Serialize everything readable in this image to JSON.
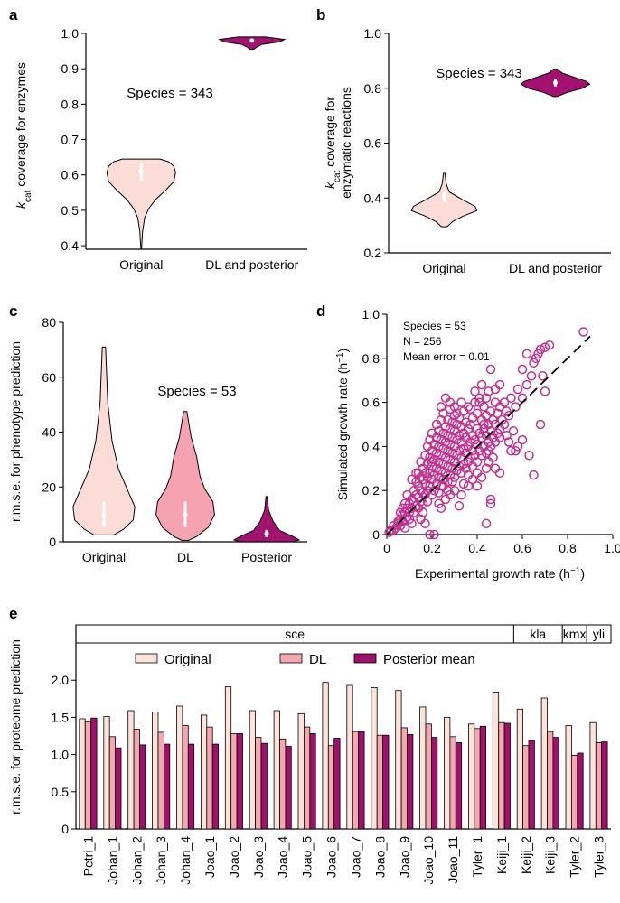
{
  "chart_data": [
    {
      "panel": "a",
      "type": "violin",
      "categories": [
        "Original",
        "DL and posterior"
      ],
      "ylabel_main": "k",
      "ylabel_sub": "cat",
      "ylabel_rest": " coverage for enzymes",
      "ylim": [
        0.39,
        1.0
      ],
      "yticks": [
        "0.4",
        "0.5",
        "0.6",
        "0.7",
        "0.8",
        "0.9",
        "1.0"
      ],
      "annotation": "Species = 343",
      "series": [
        {
          "category": "Original",
          "min": 0.39,
          "max": 0.645,
          "median": 0.61,
          "color": "#fcdcd6"
        },
        {
          "category": "DL and posterior",
          "min": 0.955,
          "max": 0.99,
          "median": 0.98,
          "color": "#a3126f"
        }
      ]
    },
    {
      "panel": "b",
      "type": "violin",
      "categories": [
        "Original",
        "DL and posterior"
      ],
      "ylabel_main": "k",
      "ylabel_sub": "cat",
      "ylabel_rest": " coverage for",
      "ylabel_line2": "enzymatic reactions",
      "ylim": [
        0.2,
        1.0
      ],
      "yticks": [
        "0.2",
        "0.4",
        "0.6",
        "0.8",
        "1.0"
      ],
      "annotation": "Species = 343",
      "series": [
        {
          "category": "Original",
          "min": 0.295,
          "max": 0.49,
          "median": 0.405,
          "color": "#fcdcd6"
        },
        {
          "category": "DL and posterior",
          "min": 0.77,
          "max": 0.87,
          "median": 0.82,
          "color": "#a3126f"
        }
      ]
    },
    {
      "panel": "c",
      "type": "violin",
      "categories": [
        "Original",
        "DL",
        "Posterior"
      ],
      "ylabel": "r.m.s.e. for phenotype prediction",
      "ylim": [
        0,
        80
      ],
      "yticks": [
        "0",
        "20",
        "40",
        "60",
        "80"
      ],
      "annotation": "Species = 53",
      "series": [
        {
          "category": "Original",
          "min": 2.5,
          "max": 71,
          "median": 10,
          "color": "#fcdcd6"
        },
        {
          "category": "DL",
          "min": 0.5,
          "max": 47.5,
          "median": 10,
          "color": "#f5a3b1"
        },
        {
          "category": "Posterior",
          "min": 0,
          "max": 16.5,
          "median": 3,
          "color": "#a3126f"
        }
      ]
    },
    {
      "panel": "d",
      "type": "scatter",
      "xlabel": "Experimental growth rate (h",
      "xlabel_sup": "−1",
      "ylabel": "Simulated growth rate (h",
      "ylabel_sup": "−1",
      "xlim": [
        0,
        1.0
      ],
      "ylim": [
        0,
        1.0
      ],
      "xticks": [
        "0",
        "0.2",
        "0.4",
        "0.6",
        "0.8",
        "1.0"
      ],
      "yticks": [
        "0",
        "0.2",
        "0.4",
        "0.6",
        "0.8",
        "1.0"
      ],
      "annotations": [
        "Species = 53",
        "N = 256",
        "Mean error = 0.01"
      ],
      "point_color": "#c3308f",
      "reference_line": {
        "from": [
          0,
          0
        ],
        "to": [
          0.9,
          0.9
        ],
        "style": "dashed"
      },
      "points": [
        [
          0.01,
          0.01
        ],
        [
          0.02,
          0.02
        ],
        [
          0.03,
          0.02
        ],
        [
          0.03,
          0.04
        ],
        [
          0.04,
          0.03
        ],
        [
          0.05,
          0.05
        ],
        [
          0.05,
          0.06
        ],
        [
          0.06,
          0.04
        ],
        [
          0.06,
          0.07
        ],
        [
          0.07,
          0.06
        ],
        [
          0.07,
          0.09
        ],
        [
          0.08,
          0.07
        ],
        [
          0.08,
          0.1
        ],
        [
          0.09,
          0.08
        ],
        [
          0.09,
          0.12
        ],
        [
          0.1,
          0.1
        ],
        [
          0.1,
          0.14
        ],
        [
          0.1,
          0.07
        ],
        [
          0.11,
          0.12
        ],
        [
          0.11,
          0.16
        ],
        [
          0.12,
          0.1
        ],
        [
          0.12,
          0.15
        ],
        [
          0.12,
          0.2
        ],
        [
          0.13,
          0.13
        ],
        [
          0.13,
          0.18
        ],
        [
          0.13,
          0.24
        ],
        [
          0.14,
          0.12
        ],
        [
          0.14,
          0.17
        ],
        [
          0.14,
          0.22
        ],
        [
          0.14,
          0.28
        ],
        [
          0.15,
          0.15
        ],
        [
          0.15,
          0.2
        ],
        [
          0.15,
          0.26
        ],
        [
          0.15,
          0.33
        ],
        [
          0.16,
          0.14
        ],
        [
          0.16,
          0.19
        ],
        [
          0.16,
          0.25
        ],
        [
          0.16,
          0.3
        ],
        [
          0.16,
          0.1
        ],
        [
          0.17,
          0.18
        ],
        [
          0.17,
          0.23
        ],
        [
          0.17,
          0.28
        ],
        [
          0.17,
          0.36
        ],
        [
          0.18,
          0.2
        ],
        [
          0.18,
          0.26
        ],
        [
          0.18,
          0.32
        ],
        [
          0.18,
          0.4
        ],
        [
          0.18,
          0.15
        ],
        [
          0.19,
          0.22
        ],
        [
          0.19,
          0.28
        ],
        [
          0.19,
          0.35
        ],
        [
          0.19,
          0.43
        ],
        [
          0.2,
          0.18
        ],
        [
          0.2,
          0.25
        ],
        [
          0.2,
          0.31
        ],
        [
          0.2,
          0.38
        ],
        [
          0.2,
          0.46
        ],
        [
          0.21,
          0.2
        ],
        [
          0.21,
          0.27
        ],
        [
          0.21,
          0.34
        ],
        [
          0.21,
          0.41
        ],
        [
          0.22,
          0.23
        ],
        [
          0.22,
          0.3
        ],
        [
          0.22,
          0.37
        ],
        [
          0.22,
          0.44
        ],
        [
          0.22,
          0.5
        ],
        [
          0.23,
          0.19
        ],
        [
          0.23,
          0.26
        ],
        [
          0.23,
          0.33
        ],
        [
          0.23,
          0.4
        ],
        [
          0.23,
          0.47
        ],
        [
          0.24,
          0.22
        ],
        [
          0.24,
          0.29
        ],
        [
          0.24,
          0.36
        ],
        [
          0.24,
          0.43
        ],
        [
          0.24,
          0.52
        ],
        [
          0.25,
          0.25
        ],
        [
          0.25,
          0.32
        ],
        [
          0.25,
          0.39
        ],
        [
          0.25,
          0.46
        ],
        [
          0.25,
          0.55
        ],
        [
          0.26,
          0.28
        ],
        [
          0.26,
          0.35
        ],
        [
          0.26,
          0.42
        ],
        [
          0.26,
          0.49
        ],
        [
          0.27,
          0.24
        ],
        [
          0.27,
          0.31
        ],
        [
          0.27,
          0.38
        ],
        [
          0.27,
          0.45
        ],
        [
          0.27,
          0.52
        ],
        [
          0.28,
          0.27
        ],
        [
          0.28,
          0.34
        ],
        [
          0.28,
          0.41
        ],
        [
          0.28,
          0.48
        ],
        [
          0.28,
          0.57
        ],
        [
          0.29,
          0.3
        ],
        [
          0.29,
          0.37
        ],
        [
          0.29,
          0.44
        ],
        [
          0.29,
          0.51
        ],
        [
          0.3,
          0.26
        ],
        [
          0.3,
          0.33
        ],
        [
          0.3,
          0.4
        ],
        [
          0.3,
          0.47
        ],
        [
          0.3,
          0.54
        ],
        [
          0.31,
          0.29
        ],
        [
          0.31,
          0.36
        ],
        [
          0.31,
          0.43
        ],
        [
          0.31,
          0.5
        ],
        [
          0.32,
          0.31
        ],
        [
          0.32,
          0.38
        ],
        [
          0.32,
          0.45
        ],
        [
          0.32,
          0.53
        ],
        [
          0.33,
          0.28
        ],
        [
          0.33,
          0.35
        ],
        [
          0.33,
          0.42
        ],
        [
          0.33,
          0.49
        ],
        [
          0.34,
          0.32
        ],
        [
          0.34,
          0.39
        ],
        [
          0.34,
          0.46
        ],
        [
          0.34,
          0.56
        ],
        [
          0.35,
          0.3
        ],
        [
          0.35,
          0.37
        ],
        [
          0.35,
          0.44
        ],
        [
          0.35,
          0.51
        ],
        [
          0.36,
          0.33
        ],
        [
          0.36,
          0.4
        ],
        [
          0.36,
          0.48
        ],
        [
          0.36,
          0.58
        ],
        [
          0.37,
          0.35
        ],
        [
          0.37,
          0.42
        ],
        [
          0.37,
          0.5
        ],
        [
          0.38,
          0.31
        ],
        [
          0.38,
          0.38
        ],
        [
          0.38,
          0.45
        ],
        [
          0.38,
          0.53
        ],
        [
          0.39,
          0.36
        ],
        [
          0.39,
          0.43
        ],
        [
          0.39,
          0.6
        ],
        [
          0.4,
          0.33
        ],
        [
          0.4,
          0.41
        ],
        [
          0.4,
          0.48
        ],
        [
          0.4,
          0.55
        ],
        [
          0.41,
          0.38
        ],
        [
          0.41,
          0.46
        ],
        [
          0.41,
          0.62
        ],
        [
          0.42,
          0.36
        ],
        [
          0.42,
          0.44
        ],
        [
          0.42,
          0.52
        ],
        [
          0.43,
          0.4
        ],
        [
          0.43,
          0.48
        ],
        [
          0.43,
          0.58
        ],
        [
          0.44,
          0.37
        ],
        [
          0.44,
          0.45
        ],
        [
          0.44,
          0.54
        ],
        [
          0.45,
          0.42
        ],
        [
          0.45,
          0.5
        ],
        [
          0.45,
          0.65
        ],
        [
          0.46,
          0.4
        ],
        [
          0.46,
          0.47
        ],
        [
          0.46,
          0.56
        ],
        [
          0.47,
          0.44
        ],
        [
          0.47,
          0.52
        ],
        [
          0.48,
          0.42
        ],
        [
          0.48,
          0.5
        ],
        [
          0.48,
          0.6
        ],
        [
          0.49,
          0.46
        ],
        [
          0.49,
          0.55
        ],
        [
          0.5,
          0.48
        ],
        [
          0.5,
          0.58
        ],
        [
          0.5,
          0.44
        ],
        [
          0.51,
          0.52
        ],
        [
          0.52,
          0.5
        ],
        [
          0.52,
          0.6
        ],
        [
          0.53,
          0.56
        ],
        [
          0.54,
          0.54
        ],
        [
          0.55,
          0.62
        ],
        [
          0.57,
          0.58
        ],
        [
          0.58,
          0.66
        ],
        [
          0.6,
          0.62
        ],
        [
          0.62,
          0.68
        ],
        [
          0.64,
          0.72
        ],
        [
          0.65,
          0.78
        ],
        [
          0.66,
          0.8
        ],
        [
          0.67,
          0.82
        ],
        [
          0.68,
          0.84
        ],
        [
          0.7,
          0.85
        ],
        [
          0.72,
          0.86
        ],
        [
          0.87,
          0.92
        ],
        [
          0.6,
          0.75
        ],
        [
          0.62,
          0.82
        ],
        [
          0.69,
          0.72
        ],
        [
          0.7,
          0.65
        ],
        [
          0.46,
          0.75
        ],
        [
          0.5,
          0.68
        ],
        [
          0.43,
          0.5
        ],
        [
          0.45,
          0.38
        ],
        [
          0.48,
          0.3
        ],
        [
          0.5,
          0.28
        ],
        [
          0.55,
          0.38
        ],
        [
          0.56,
          0.47
        ],
        [
          0.57,
          0.38
        ],
        [
          0.58,
          0.4
        ],
        [
          0.6,
          0.43
        ],
        [
          0.63,
          0.36
        ],
        [
          0.65,
          0.27
        ],
        [
          0.68,
          0.5
        ],
        [
          0.4,
          0.28
        ],
        [
          0.42,
          0.26
        ],
        [
          0.44,
          0.3
        ],
        [
          0.45,
          0.33
        ],
        [
          0.46,
          0.16
        ],
        [
          0.46,
          0.14
        ],
        [
          0.44,
          0.05
        ],
        [
          0.36,
          0.22
        ],
        [
          0.34,
          0.23
        ],
        [
          0.3,
          0.2
        ],
        [
          0.28,
          0.18
        ],
        [
          0.26,
          0.16
        ],
        [
          0.24,
          0.12
        ],
        [
          0.21,
          0.0
        ],
        [
          0.19,
          0.0
        ],
        [
          0.17,
          0.05
        ],
        [
          0.15,
          0.07
        ],
        [
          0.11,
          0.05
        ],
        [
          0.08,
          0.03
        ],
        [
          0.26,
          0.62
        ],
        [
          0.28,
          0.6
        ],
        [
          0.31,
          0.55
        ],
        [
          0.33,
          0.6
        ],
        [
          0.37,
          0.57
        ],
        [
          0.39,
          0.65
        ],
        [
          0.41,
          0.6
        ],
        [
          0.42,
          0.68
        ],
        [
          0.44,
          0.62
        ],
        [
          0.48,
          0.66
        ],
        [
          0.53,
          0.45
        ],
        [
          0.54,
          0.42
        ],
        [
          0.3,
          0.58
        ],
        [
          0.24,
          0.58
        ],
        [
          0.2,
          0.33
        ],
        [
          0.13,
          0.28
        ],
        [
          0.11,
          0.25
        ],
        [
          0.09,
          0.18
        ],
        [
          0.08,
          0.14
        ],
        [
          0.07,
          0.12
        ],
        [
          0.06,
          0.1
        ],
        [
          0.36,
          0.27
        ],
        [
          0.38,
          0.25
        ],
        [
          0.4,
          0.22
        ],
        [
          0.33,
          0.18
        ],
        [
          0.32,
          0.13
        ],
        [
          0.29,
          0.24
        ],
        [
          0.27,
          0.2
        ],
        [
          0.25,
          0.22
        ],
        [
          0.23,
          0.14
        ],
        [
          0.47,
          0.35
        ]
      ]
    },
    {
      "panel": "e",
      "type": "bar",
      "ylabel": "r.m.s.e. for proteome prediction",
      "ylim": [
        0,
        2.5
      ],
      "yticks": [
        "0",
        "0.5",
        "1.0",
        "1.5",
        "2.0"
      ],
      "categories": [
        "Petri_1",
        "Johan_1",
        "Johan_2",
        "Johan_3",
        "Johan_4",
        "Joao_1",
        "Joao_2",
        "Joao_3",
        "Joao_4",
        "Joao_5",
        "Joao_6",
        "Joao_7",
        "Joao_8",
        "Joao_9",
        "Joao_10",
        "Joao_11",
        "Tyler_1",
        "Keiji_1",
        "Keiji_2",
        "Keiji_3",
        "Tyler_2",
        "Tyler_3"
      ],
      "groups": [
        {
          "label": "sce",
          "start": 0,
          "end": 17
        },
        {
          "label": "kla",
          "start": 18,
          "end": 19
        },
        {
          "label": "kmx",
          "start": 20,
          "end": 20
        },
        {
          "label": "yli",
          "start": 21,
          "end": 21
        }
      ],
      "series": [
        {
          "name": "Original",
          "color": "#fce3da",
          "values": [
            1.48,
            1.51,
            1.59,
            1.57,
            1.65,
            1.53,
            1.91,
            1.59,
            1.59,
            1.55,
            1.97,
            1.93,
            1.9,
            1.86,
            1.64,
            1.5,
            1.41,
            1.84,
            1.61,
            1.76,
            1.39,
            1.43
          ]
        },
        {
          "name": "DL",
          "color": "#f2a8ae",
          "values": [
            1.44,
            1.24,
            1.34,
            1.3,
            1.39,
            1.37,
            1.28,
            1.23,
            1.21,
            1.37,
            1.12,
            1.31,
            1.26,
            1.36,
            1.41,
            1.24,
            1.35,
            1.43,
            1.12,
            1.31,
            0.99,
            1.16
          ]
        },
        {
          "name": "Posterior mean",
          "color": "#a0106c",
          "values": [
            1.49,
            1.09,
            1.13,
            1.14,
            1.14,
            1.14,
            1.28,
            1.15,
            1.11,
            1.28,
            1.22,
            1.31,
            1.26,
            1.27,
            1.23,
            1.16,
            1.38,
            1.42,
            1.19,
            1.23,
            1.02,
            1.17
          ]
        }
      ]
    }
  ]
}
